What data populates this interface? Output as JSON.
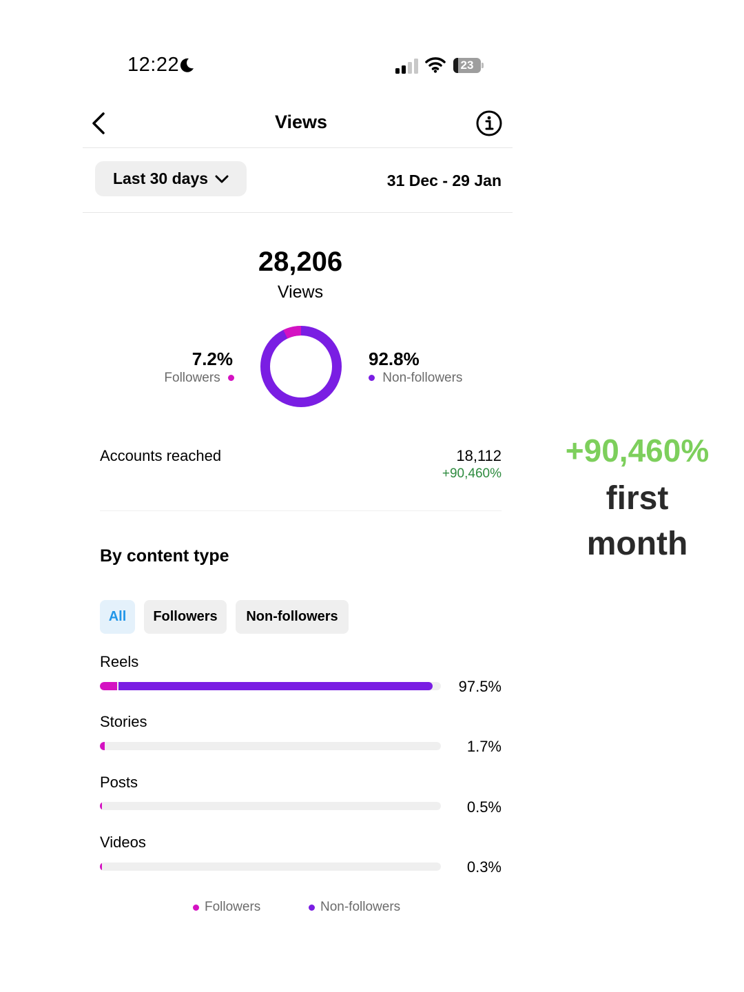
{
  "status_bar": {
    "time": "12:22",
    "battery": "23"
  },
  "header": {
    "title": "Views"
  },
  "filter": {
    "range_label": "Last 30 days",
    "date_range": "31 Dec - 29 Jan"
  },
  "summary": {
    "total": "28,206",
    "total_label": "Views",
    "followers_pct": "7.2%",
    "followers_label": "Followers",
    "non_followers_pct": "92.8%",
    "non_followers_label": "Non-followers"
  },
  "accounts": {
    "label": "Accounts reached",
    "value": "18,112",
    "change": "+90,460%"
  },
  "content_type": {
    "title": "By content type",
    "tabs": [
      "All",
      "Followers",
      "Non-followers"
    ],
    "active_tab": "All"
  },
  "chart_data": {
    "type": "bar",
    "categories": [
      "Reels",
      "Stories",
      "Posts",
      "Videos"
    ],
    "values": [
      97.5,
      1.7,
      0.5,
      0.3
    ],
    "value_labels": [
      "97.5%",
      "1.7%",
      "0.5%",
      "0.3%"
    ],
    "followers_share_of_total": [
      5.0,
      1.5,
      0.3,
      0.15
    ],
    "legend": [
      "Followers",
      "Non-followers"
    ],
    "donut": {
      "followers": 7.2,
      "non_followers": 92.8
    }
  },
  "colors": {
    "followers": "#d412c2",
    "non_followers": "#7a1ee3",
    "positive": "#2e8b3f",
    "promo_green": "#7dcf5c"
  },
  "icons": {
    "back": "chevron-left-icon",
    "info": "info-circle-icon",
    "dropdown": "chevron-down-icon"
  },
  "promo": {
    "line1": "+90,460%",
    "line2": "first",
    "line3": "month"
  }
}
